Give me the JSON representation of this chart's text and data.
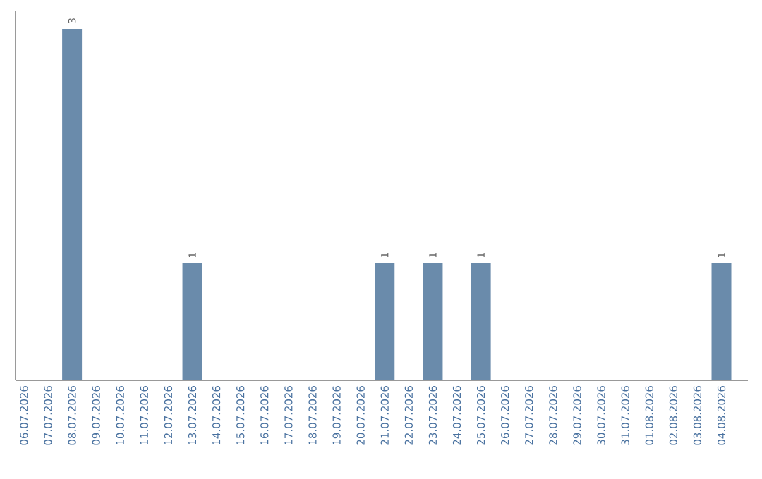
{
  "chart_data": {
    "type": "bar",
    "categories": [
      "06.07.2026",
      "07.07.2026",
      "08.07.2026",
      "09.07.2026",
      "10.07.2026",
      "11.07.2026",
      "12.07.2026",
      "13.07.2026",
      "14.07.2026",
      "15.07.2026",
      "16.07.2026",
      "17.07.2026",
      "18.07.2026",
      "19.07.2026",
      "20.07.2026",
      "21.07.2026",
      "22.07.2026",
      "23.07.2026",
      "24.07.2026",
      "25.07.2026",
      "26.07.2026",
      "27.07.2026",
      "28.07.2026",
      "29.07.2026",
      "30.07.2026",
      "31.07.2026",
      "01.08.2026",
      "02.08.2026",
      "03.08.2026",
      "04.08.2026"
    ],
    "values": [
      0,
      0,
      3,
      0,
      0,
      0,
      0,
      1,
      0,
      0,
      0,
      0,
      0,
      0,
      0,
      1,
      0,
      1,
      0,
      1,
      0,
      0,
      0,
      0,
      0,
      0,
      0,
      0,
      0,
      1
    ],
    "value_labels": [
      null,
      null,
      "3",
      null,
      null,
      null,
      null,
      "1",
      null,
      null,
      null,
      null,
      null,
      null,
      null,
      "1",
      null,
      "1",
      null,
      "1",
      null,
      null,
      null,
      null,
      null,
      null,
      null,
      null,
      null,
      "1"
    ],
    "color": "#6a8bab"
  }
}
